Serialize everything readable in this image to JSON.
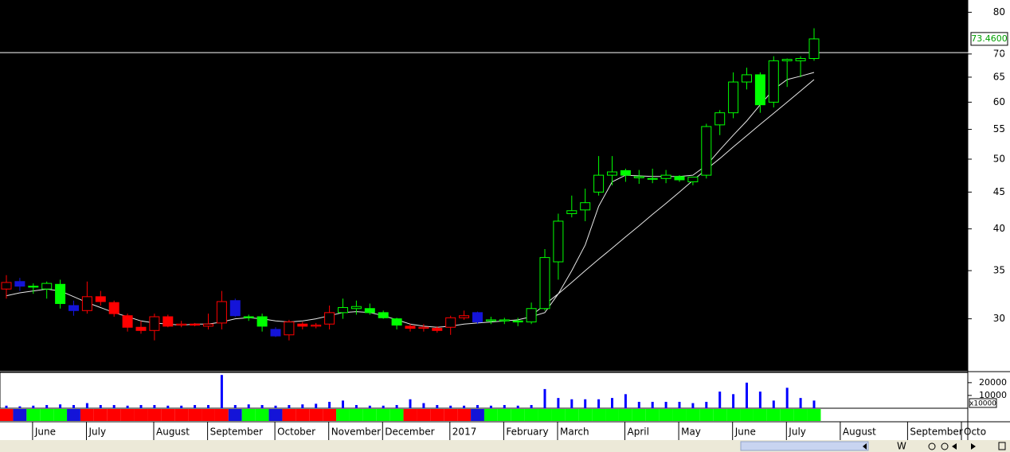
{
  "chart_data": {
    "type": "candlestick",
    "log_scale": true,
    "categories": [
      null,
      "June",
      null,
      null,
      null,
      "July",
      null,
      null,
      null,
      null,
      "August",
      null,
      null,
      null,
      "September",
      null,
      null,
      null,
      null,
      "October",
      null,
      null,
      null,
      "November",
      null,
      null,
      null,
      "December",
      null,
      null,
      null,
      null,
      "2017",
      null,
      null,
      null,
      "February",
      null,
      null,
      null,
      "March",
      null,
      null,
      null,
      null,
      "April",
      null,
      null,
      null,
      "May",
      null,
      null,
      null,
      "June",
      null,
      null,
      null,
      "July",
      null,
      null,
      null,
      "August",
      null,
      null,
      null,
      null,
      "September",
      null,
      null,
      null,
      "Octo",
      null
    ],
    "open": [
      33.0,
      33.8,
      33.3,
      33.0,
      33.5,
      31.3,
      30.8,
      32.2,
      31.6,
      30.3,
      29.2,
      28.9,
      30.2,
      29.4,
      29.5,
      29.3,
      29.6,
      31.8,
      30.2,
      30.2,
      29.0,
      28.5,
      29.5,
      29.3,
      29.5,
      30.6,
      31.0,
      31.0,
      30.6,
      30.0,
      29.3,
      29.1,
      29.1,
      29.2,
      30.1,
      30.6,
      29.8,
      29.8,
      29.8,
      29.7,
      31.0,
      36.0,
      42.0,
      42.5,
      45.0,
      47.5,
      48.2,
      47.1,
      47.0,
      47.0,
      47.3,
      46.5,
      47.5,
      55.8,
      58.0,
      64.0,
      65.5,
      60.0,
      68.5,
      68.5,
      69.0,
      null,
      null,
      null,
      null,
      null,
      null,
      null,
      null,
      null,
      null,
      null
    ],
    "high": [
      34.5,
      34.2,
      33.6,
      33.8,
      34.0,
      31.8,
      33.8,
      32.8,
      31.8,
      30.5,
      29.8,
      30.5,
      30.4,
      29.8,
      29.6,
      30.5,
      32.8,
      32.0,
      30.4,
      30.5,
      29.2,
      29.9,
      29.7,
      29.6,
      31.3,
      32.0,
      31.8,
      31.5,
      30.8,
      30.1,
      29.5,
      29.5,
      29.3,
      30.3,
      30.8,
      30.7,
      30.2,
      30.1,
      30.1,
      31.6,
      37.5,
      42.0,
      44.5,
      45.5,
      50.5,
      50.5,
      48.5,
      48.3,
      48.5,
      48.3,
      47.5,
      47.0,
      56.0,
      58.5,
      66.0,
      67.0,
      66.0,
      69.5,
      69.0,
      69.5,
      76.0,
      null,
      null,
      null,
      null,
      null,
      null,
      null,
      null,
      null,
      null,
      null
    ],
    "low": [
      32.0,
      32.8,
      32.5,
      32.0,
      31.0,
      30.3,
      30.5,
      31.3,
      30.2,
      28.8,
      28.6,
      28.0,
      29.2,
      29.2,
      29.3,
      29.0,
      29.0,
      30.2,
      29.8,
      28.8,
      28.3,
      28.0,
      29.0,
      29.1,
      29.0,
      30.0,
      30.4,
      30.4,
      30.0,
      29.0,
      28.8,
      28.8,
      28.7,
      28.5,
      29.9,
      29.5,
      29.5,
      29.5,
      29.3,
      29.5,
      30.8,
      34.0,
      41.5,
      41.0,
      44.5,
      46.0,
      46.5,
      46.2,
      46.3,
      46.3,
      46.5,
      46.0,
      47.0,
      54.0,
      57.0,
      62.5,
      58.0,
      59.0,
      63.0,
      65.0,
      68.5,
      null,
      null,
      null,
      null,
      null,
      null,
      null,
      null,
      null,
      null,
      null
    ],
    "close": [
      33.7,
      33.3,
      33.2,
      33.6,
      31.5,
      30.8,
      32.2,
      31.7,
      30.5,
      29.2,
      28.9,
      30.2,
      29.3,
      29.5,
      29.4,
      29.5,
      31.7,
      30.3,
      30.1,
      29.3,
      28.4,
      29.7,
      29.3,
      29.4,
      30.6,
      31.1,
      31.2,
      30.6,
      30.1,
      29.4,
      29.1,
      29.2,
      28.9,
      30.1,
      30.3,
      29.7,
      29.9,
      29.9,
      29.7,
      31.0,
      36.5,
      41.0,
      42.4,
      43.5,
      47.5,
      48.0,
      47.5,
      47.3,
      47.0,
      47.5,
      46.8,
      47.2,
      55.5,
      58.0,
      64.0,
      65.5,
      59.5,
      68.5,
      68.8,
      69.0,
      73.46,
      null,
      null,
      null,
      null,
      null,
      null,
      null,
      null,
      null,
      null,
      null
    ],
    "colors": [
      "#ff0000",
      "#1414d8",
      "#00ff00",
      "#00ff00",
      "#00ff00",
      "#1414d8",
      "#ff0000",
      "#ff0000",
      "#ff0000",
      "#ff0000",
      "#ff0000",
      "#ff0000",
      "#ff0000",
      "#ff0000",
      "#ff0000",
      "#ff0000",
      "#ff0000",
      "#1414d8",
      "#00ff00",
      "#00ff00",
      "#1414d8",
      "#ff0000",
      "#ff0000",
      "#ff0000",
      "#ff0000",
      "#00ff00",
      "#00ff00",
      "#00ff00",
      "#00ff00",
      "#00ff00",
      "#ff0000",
      "#ff0000",
      "#ff0000",
      "#ff0000",
      "#ff0000",
      "#1414d8",
      "#00ff00",
      "#00ff00",
      "#00ff00",
      "#00ff00",
      "#00ff00",
      "#00ff00",
      "#00ff00",
      "#00ff00",
      "#00ff00",
      "#00ff00",
      "#00ff00",
      "#00ff00",
      "#00ff00",
      "#00ff00",
      "#00ff00",
      "#00ff00",
      "#00ff00",
      "#00ff00",
      "#00ff00",
      "#00ff00",
      "#00ff00",
      "#00ff00",
      "#00ff00",
      "#00ff00",
      "#00ff00",
      null,
      null,
      null,
      null,
      null,
      null,
      null,
      null,
      null,
      null,
      null
    ],
    "ma_short": [
      32.3,
      32.6,
      32.8,
      33.0,
      32.8,
      32.2,
      31.6,
      31.1,
      30.6,
      30.2,
      29.8,
      29.6,
      29.5,
      29.4,
      29.5,
      29.5,
      29.7,
      30.0,
      30.1,
      30.0,
      29.8,
      29.7,
      29.8,
      30.0,
      30.3,
      30.6,
      30.7,
      30.6,
      30.3,
      29.9,
      29.5,
      29.3,
      29.2,
      29.3,
      29.5,
      29.6,
      29.7,
      29.8,
      29.9,
      30.2,
      30.6,
      32.5,
      35.0,
      38.0,
      43.0,
      46.5,
      47.5,
      47.4,
      47.3,
      47.3,
      47.3,
      47.5,
      49.0,
      51.5,
      54.0,
      56.5,
      59.5,
      62.5,
      64.5,
      65.2,
      66.0,
      null,
      null,
      null,
      null,
      null,
      null,
      null,
      null,
      null,
      null,
      null
    ],
    "ma_long": [
      null,
      null,
      null,
      null,
      null,
      null,
      null,
      null,
      null,
      null,
      null,
      null,
      null,
      null,
      null,
      null,
      null,
      null,
      null,
      null,
      null,
      null,
      null,
      null,
      null,
      null,
      null,
      null,
      null,
      null,
      null,
      null,
      null,
      null,
      null,
      null,
      null,
      null,
      null,
      30.3,
      31.4,
      32.5,
      33.7,
      35.0,
      36.3,
      37.6,
      39.0,
      40.4,
      41.9,
      43.4,
      45.0,
      46.7,
      48.4,
      50.1,
      52.0,
      53.9,
      55.9,
      57.9,
      60.0,
      62.2,
      64.5,
      null,
      null,
      null,
      null,
      null,
      null,
      null,
      null,
      null,
      null,
      null
    ],
    "ylim": [
      25.4,
      83.2
    ],
    "yticks": [
      30,
      35,
      40,
      45,
      50,
      55,
      60,
      65,
      70,
      80
    ],
    "hline": 70.3,
    "last_price": {
      "value": 73.46,
      "label": "73.4600"
    },
    "volume": {
      "values": [
        2000,
        1500,
        2000,
        2500,
        3000,
        2500,
        4000,
        2500,
        2500,
        2000,
        2500,
        2500,
        2000,
        2000,
        2500,
        2500,
        26000,
        2500,
        3000,
        2500,
        2000,
        2500,
        3000,
        3500,
        5000,
        6000,
        2500,
        2000,
        2000,
        2500,
        7000,
        4000,
        2500,
        2000,
        2000,
        2500,
        2000,
        2500,
        2000,
        2500,
        15000,
        8000,
        7000,
        7000,
        7000,
        8000,
        11000,
        5000,
        5000,
        5000,
        5000,
        4000,
        5000,
        13000,
        11000,
        20000,
        13000,
        6000,
        16000,
        8000,
        6000,
        null,
        null,
        null,
        null,
        null,
        null,
        null,
        null,
        null,
        null,
        null
      ],
      "color": "#0000ff",
      "ylim": [
        0,
        28000
      ],
      "yticks": [
        10000,
        20000
      ],
      "multiplier_label": "x10000"
    }
  },
  "toolbar": {
    "week_button": "W"
  }
}
